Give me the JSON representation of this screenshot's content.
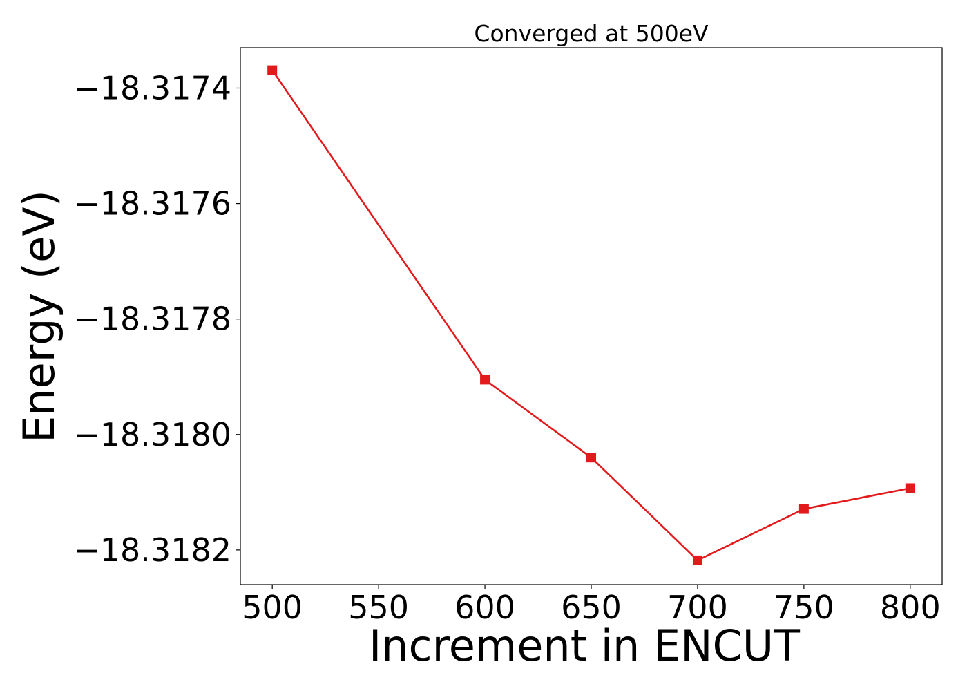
{
  "chart_data": {
    "type": "line",
    "title": "Converged at 500eV",
    "xlabel": "Increment in ENCUT",
    "ylabel": "Energy (eV)",
    "x": [
      500,
      600,
      650,
      700,
      750,
      800
    ],
    "series": [
      {
        "values": [
          -18.317369,
          -18.317905,
          -18.31804,
          -18.318218,
          -18.318129,
          -18.318093
        ],
        "color": "#e31a1c",
        "marker": "square"
      }
    ],
    "xlim": [
      485,
      815
    ],
    "ylim": [
      -18.31826,
      -18.31733
    ],
    "xticks": [
      500,
      550,
      600,
      650,
      700,
      750,
      800
    ],
    "xtick_labels": [
      "500",
      "550",
      "600",
      "650",
      "700",
      "750",
      "800"
    ],
    "yticks": [
      -18.3182,
      -18.318,
      -18.3178,
      -18.3176,
      -18.3174
    ],
    "ytick_labels": [
      "−18.3182",
      "−18.3180",
      "−18.3178",
      "−18.3176",
      "−18.3174"
    ],
    "grid": false,
    "legend": false
  }
}
